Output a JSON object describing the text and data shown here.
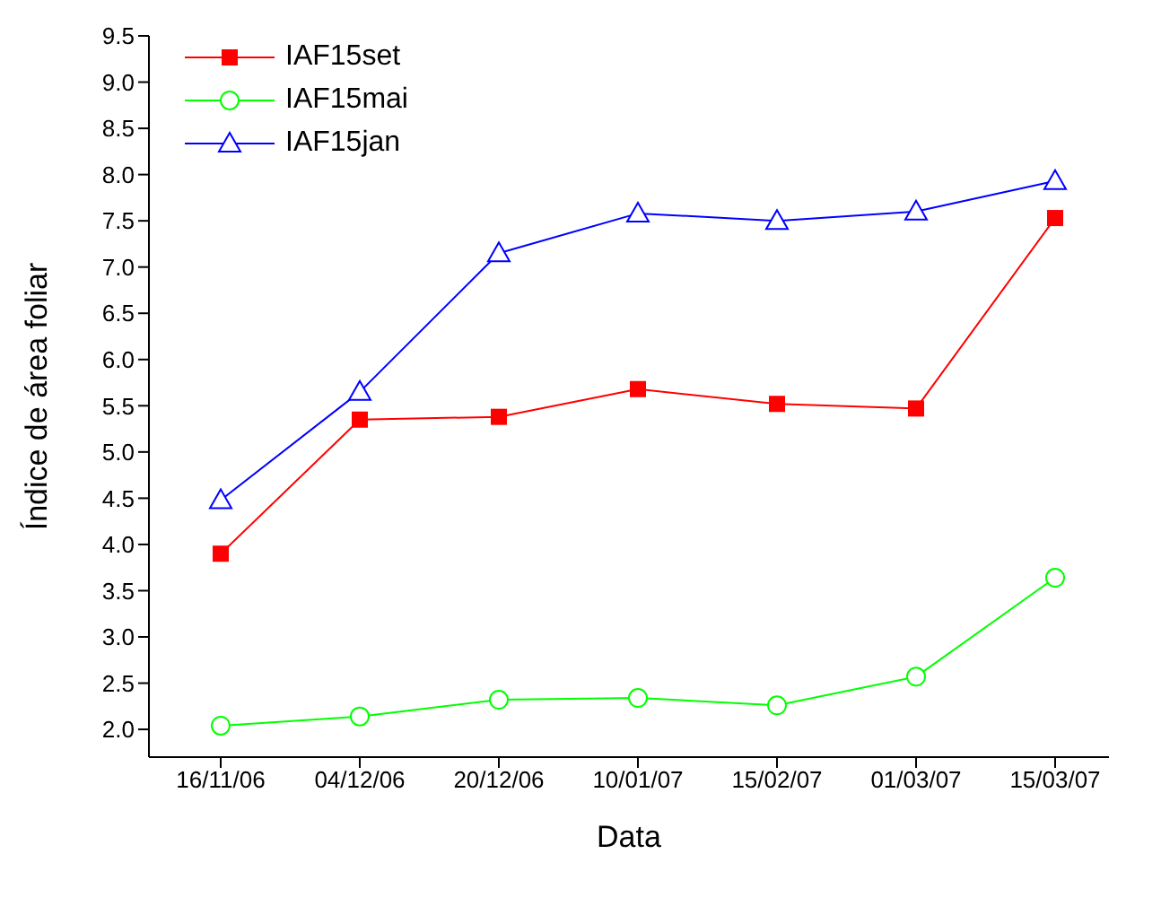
{
  "chart_data": {
    "type": "line",
    "xlabel": "Data",
    "ylabel": "Índice de área foliar",
    "categories": [
      "16/11/06",
      "04/12/06",
      "20/12/06",
      "10/01/07",
      "15/02/07",
      "01/03/07",
      "15/03/07"
    ],
    "series": [
      {
        "name": "IAF15set",
        "color": "#ff0000",
        "marker": "square",
        "values": [
          3.9,
          5.35,
          5.38,
          5.68,
          5.52,
          5.47,
          7.53
        ]
      },
      {
        "name": "IAF15mai",
        "color": "#00ff00",
        "marker": "circle",
        "values": [
          2.04,
          2.14,
          2.32,
          2.34,
          2.26,
          2.57,
          3.64
        ]
      },
      {
        "name": "IAF15jan",
        "color": "#0000ff",
        "marker": "triangle",
        "values": [
          4.48,
          5.65,
          7.15,
          7.58,
          7.5,
          7.6,
          7.93
        ]
      }
    ],
    "ylim": [
      1.7,
      9.5
    ],
    "yticks": [
      {
        "value": 2,
        "label": "2.0"
      },
      2.5,
      {
        "value": 3,
        "label": "3.0"
      },
      3.5,
      {
        "value": 4,
        "label": "4.0"
      },
      4.5,
      {
        "value": 5,
        "label": "5.0"
      },
      5.5,
      {
        "value": 6,
        "label": "6.0"
      },
      6.5,
      {
        "value": 7,
        "label": "7.0"
      },
      7.5,
      {
        "value": 8,
        "label": "8.0"
      },
      8.5,
      {
        "value": 9,
        "label": "9.0"
      },
      9.5
    ],
    "grid": false,
    "legend": "top left"
  }
}
